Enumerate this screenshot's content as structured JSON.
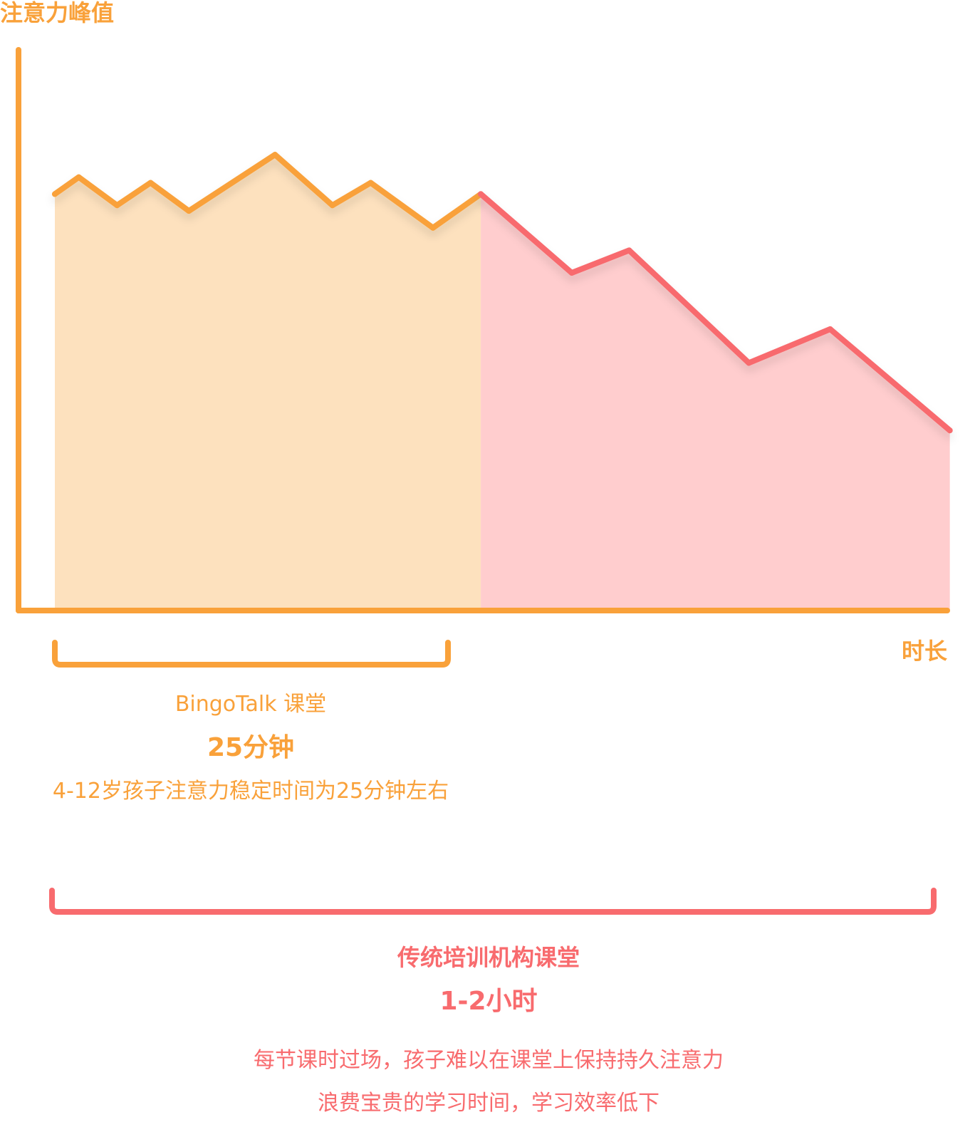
{
  "colors": {
    "bingotalk_line": "#F9A13A",
    "bingotalk_fill": "#FDE1BE",
    "traditional_line": "#F86B6E",
    "traditional_fill": "#FFCDCE",
    "axis": "#F9A13A"
  },
  "chart_data": {
    "type": "line",
    "ylabel": "注意力峰值",
    "xlabel": "时长",
    "grid": false,
    "series": [
      {
        "name": "BingoTalk 课堂",
        "points": [
          [
            0.0,
            0.74
          ],
          [
            0.05,
            0.77
          ],
          [
            0.13,
            0.72
          ],
          [
            0.2,
            0.76
          ],
          [
            0.28,
            0.71
          ],
          [
            0.46,
            0.81
          ],
          [
            0.58,
            0.72
          ],
          [
            0.66,
            0.76
          ],
          [
            0.79,
            0.68
          ],
          [
            0.89,
            0.74
          ]
        ]
      },
      {
        "name": "传统培训机构课堂",
        "points": [
          [
            0.89,
            0.74
          ],
          [
            1.08,
            0.6
          ],
          [
            1.2,
            0.64
          ],
          [
            1.45,
            0.44
          ],
          [
            1.62,
            0.5
          ],
          [
            1.87,
            0.32
          ]
        ]
      }
    ]
  },
  "segments": {
    "bingotalk": {
      "title": "BingoTalk 课堂",
      "duration": "25分钟",
      "note": "4-12岁孩子注意力稳定时间为25分钟左右"
    },
    "traditional": {
      "title": "传统培训机构课堂",
      "duration": "1-2小时",
      "note_line1": "每节课时过场，孩子难以在课堂上保持持久注意力",
      "note_line2": "浪费宝贵的学习时间，学习效率低下"
    }
  }
}
